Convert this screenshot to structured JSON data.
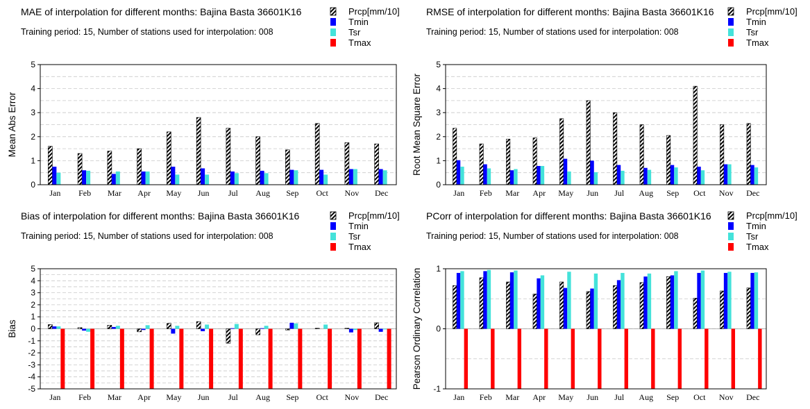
{
  "legend_items": [
    {
      "name": "Prcp[mm/10]",
      "style": "hatch"
    },
    {
      "name": "Tmin",
      "color": "#0000ff"
    },
    {
      "name": "Tsr",
      "color": "#44e2da"
    },
    {
      "name": "Tmax",
      "color": "#ff0000"
    }
  ],
  "chart_data": [
    {
      "type": "bar",
      "title": "MAE of interpolation for different months: Bajina Basta  36601K16",
      "subtitle": "Training period: 15, Number of stations used for interpolation: 008",
      "ylabel": "Mean Abs Error",
      "ylim": [
        0,
        5
      ],
      "yticks": [
        "0",
        "1",
        "2",
        "3",
        "4",
        "5"
      ],
      "categories": [
        "Jan",
        "Feb",
        "Mar",
        "Apr",
        "May",
        "Jun",
        "Jul",
        "Aug",
        "Sep",
        "Oct",
        "Nov",
        "Dec"
      ],
      "series": [
        {
          "name": "Prcp[mm/10]",
          "values": [
            1.6,
            1.3,
            1.4,
            1.5,
            2.2,
            2.8,
            2.35,
            2.0,
            1.45,
            2.55,
            1.75,
            1.7
          ]
        },
        {
          "name": "Tmin",
          "values": [
            0.75,
            0.6,
            0.45,
            0.55,
            0.75,
            0.68,
            0.55,
            0.58,
            0.62,
            0.62,
            0.65,
            0.65
          ]
        },
        {
          "name": "Tsr",
          "values": [
            0.5,
            0.58,
            0.55,
            0.55,
            0.42,
            0.42,
            0.48,
            0.48,
            0.6,
            0.42,
            0.65,
            0.6
          ]
        },
        {
          "name": "Tmax",
          "values": [
            0,
            0,
            0,
            0,
            0,
            0,
            0,
            0,
            0,
            0,
            0,
            0
          ]
        }
      ]
    },
    {
      "type": "bar",
      "title": "RMSE of interpolation for different months: Bajina Basta  36601K16",
      "subtitle": "Training period: 15, Number of stations used for interpolation: 008",
      "ylabel": "Root Mean Square Error",
      "ylim": [
        0,
        5
      ],
      "yticks": [
        "0",
        "1",
        "2",
        "3",
        "4",
        "5"
      ],
      "categories": [
        "Jan",
        "Feb",
        "Mar",
        "Apr",
        "May",
        "Jun",
        "Jul",
        "Aug",
        "Sep",
        "Oct",
        "Nov",
        "Dec"
      ],
      "series": [
        {
          "name": "Prcp[mm/10]",
          "values": [
            2.35,
            1.7,
            1.9,
            1.95,
            2.75,
            3.5,
            3.0,
            2.5,
            2.05,
            4.1,
            2.5,
            2.55
          ]
        },
        {
          "name": "Tmin",
          "values": [
            1.02,
            0.85,
            0.6,
            0.78,
            1.08,
            1.0,
            0.82,
            0.7,
            0.82,
            0.75,
            0.85,
            0.82
          ]
        },
        {
          "name": "Tsr",
          "values": [
            0.75,
            0.68,
            0.65,
            0.78,
            0.55,
            0.52,
            0.58,
            0.62,
            0.72,
            0.6,
            0.85,
            0.72
          ]
        },
        {
          "name": "Tmax",
          "values": [
            0,
            0,
            0,
            0,
            0,
            0,
            0,
            0,
            0,
            0,
            0,
            0
          ]
        }
      ]
    },
    {
      "type": "bar",
      "title": "Bias of interpolation for different months: Bajina Basta  36601K16",
      "subtitle": "Training period: 15, Number of stations used for interpolation: 008",
      "ylabel": "Bias",
      "ylim": [
        -5,
        5
      ],
      "yticks": [
        "-5",
        "-4",
        "-3",
        "-2",
        "-1",
        "0",
        "1",
        "2",
        "3",
        "4",
        "5"
      ],
      "categories": [
        "Jan",
        "Feb",
        "Mar",
        "Apr",
        "May",
        "Jun",
        "Jul",
        "Aug",
        "Sep",
        "Oct",
        "Nov",
        "Dec"
      ],
      "series": [
        {
          "name": "Prcp[mm/10]",
          "values": [
            0.35,
            0.1,
            0.3,
            -0.25,
            0.45,
            0.6,
            -1.2,
            -0.5,
            -0.1,
            0.05,
            0.05,
            0.5
          ]
        },
        {
          "name": "Tmin",
          "values": [
            0.2,
            -0.15,
            0.15,
            -0.1,
            -0.4,
            -0.2,
            0.05,
            0.05,
            0.5,
            0.0,
            -0.3,
            -0.25
          ]
        },
        {
          "name": "Tsr",
          "values": [
            0.2,
            -0.25,
            0.25,
            0.3,
            0.25,
            0.35,
            0.4,
            0.25,
            0.45,
            0.35,
            -0.1,
            -0.05
          ]
        },
        {
          "name": "Tmax",
          "values": [
            -5,
            -5,
            -5,
            -5,
            -5,
            -5,
            -5,
            -5,
            -5,
            -5,
            -5,
            -5
          ]
        }
      ]
    },
    {
      "type": "bar",
      "title": "PCorr of interpolation for different months: Bajina Basta  36601K16",
      "subtitle": "Training period: 15, Number of stations used for interpolation: 008",
      "ylabel": "Pearson Ordinary Correlation",
      "ylim": [
        -1,
        1
      ],
      "yticks": [
        "-1",
        "0",
        "1"
      ],
      "categories": [
        "Jan",
        "Feb",
        "Mar",
        "Apr",
        "May",
        "Jun",
        "Jul",
        "Aug",
        "Sep",
        "Oct",
        "Nov",
        "Dec"
      ],
      "series": [
        {
          "name": "Prcp[mm/10]",
          "values": [
            0.72,
            0.85,
            0.78,
            0.58,
            0.78,
            0.62,
            0.72,
            0.77,
            0.87,
            0.51,
            0.63,
            0.68
          ]
        },
        {
          "name": "Tmin",
          "values": [
            0.93,
            0.96,
            0.94,
            0.84,
            0.68,
            0.67,
            0.81,
            0.87,
            0.89,
            0.93,
            0.93,
            0.93
          ]
        },
        {
          "name": "Tsr",
          "values": [
            0.96,
            0.98,
            0.97,
            0.89,
            0.95,
            0.92,
            0.93,
            0.92,
            0.96,
            0.97,
            0.95,
            0.94
          ]
        },
        {
          "name": "Tmax",
          "values": [
            -1,
            -1,
            -1,
            -1,
            -1,
            -1,
            -1,
            -1,
            -1,
            -1,
            -1,
            -1
          ]
        }
      ]
    }
  ]
}
